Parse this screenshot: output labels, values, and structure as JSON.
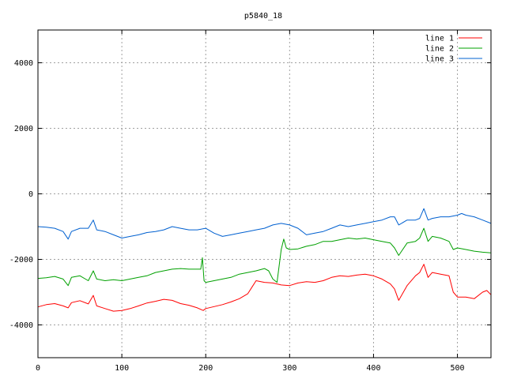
{
  "chart_data": {
    "type": "line",
    "title": "p5840_18",
    "xlabel": "",
    "ylabel": "",
    "xlim": [
      0,
      540
    ],
    "ylim": [
      -5000,
      5000
    ],
    "x_ticks": [
      0,
      100,
      200,
      300,
      400,
      500
    ],
    "y_ticks": [
      -4000,
      -2000,
      0,
      2000,
      4000
    ],
    "grid": true,
    "legend_position": "top-right",
    "series": [
      {
        "name": "line 1",
        "color": "#ff0000",
        "x": [
          0,
          10,
          20,
          30,
          36,
          40,
          50,
          60,
          66,
          70,
          80,
          90,
          100,
          110,
          120,
          130,
          140,
          150,
          160,
          170,
          180,
          190,
          197,
          200,
          210,
          220,
          230,
          240,
          250,
          255,
          260,
          270,
          280,
          290,
          300,
          310,
          320,
          330,
          340,
          350,
          360,
          370,
          380,
          390,
          400,
          410,
          420,
          425,
          430,
          440,
          450,
          455,
          460,
          465,
          470,
          480,
          490,
          495,
          500,
          510,
          520,
          530,
          535,
          540
        ],
        "y": [
          -3450,
          -3380,
          -3350,
          -3420,
          -3480,
          -3320,
          -3260,
          -3360,
          -3100,
          -3420,
          -3500,
          -3580,
          -3560,
          -3500,
          -3420,
          -3330,
          -3280,
          -3220,
          -3250,
          -3350,
          -3400,
          -3480,
          -3560,
          -3500,
          -3440,
          -3380,
          -3300,
          -3200,
          -3050,
          -2850,
          -2650,
          -2700,
          -2720,
          -2780,
          -2800,
          -2720,
          -2680,
          -2700,
          -2650,
          -2550,
          -2500,
          -2520,
          -2480,
          -2450,
          -2500,
          -2600,
          -2750,
          -2900,
          -3250,
          -2800,
          -2500,
          -2400,
          -2150,
          -2550,
          -2400,
          -2450,
          -2500,
          -3000,
          -3150,
          -3150,
          -3200,
          -3000,
          -2950,
          -3080
        ]
      },
      {
        "name": "line 2",
        "color": "#00a000",
        "x": [
          0,
          10,
          20,
          30,
          36,
          40,
          50,
          60,
          66,
          70,
          80,
          90,
          100,
          110,
          120,
          130,
          140,
          150,
          160,
          170,
          180,
          190,
          194,
          196,
          198,
          200,
          210,
          220,
          230,
          240,
          250,
          260,
          270,
          275,
          280,
          285,
          290,
          293,
          296,
          300,
          310,
          320,
          330,
          340,
          350,
          360,
          370,
          380,
          390,
          400,
          410,
          420,
          425,
          430,
          440,
          450,
          455,
          460,
          465,
          470,
          480,
          490,
          495,
          500,
          510,
          520,
          530,
          540
        ],
        "y": [
          -2580,
          -2560,
          -2520,
          -2600,
          -2800,
          -2550,
          -2500,
          -2650,
          -2350,
          -2600,
          -2650,
          -2620,
          -2650,
          -2600,
          -2550,
          -2500,
          -2400,
          -2350,
          -2300,
          -2280,
          -2300,
          -2300,
          -2300,
          -1950,
          -2650,
          -2700,
          -2650,
          -2600,
          -2550,
          -2450,
          -2400,
          -2350,
          -2280,
          -2350,
          -2600,
          -2700,
          -1700,
          -1380,
          -1650,
          -1700,
          -1680,
          -1600,
          -1550,
          -1450,
          -1450,
          -1400,
          -1350,
          -1380,
          -1350,
          -1400,
          -1450,
          -1500,
          -1650,
          -1880,
          -1500,
          -1450,
          -1350,
          -1050,
          -1450,
          -1300,
          -1350,
          -1450,
          -1700,
          -1650,
          -1700,
          -1750,
          -1780,
          -1800
        ]
      },
      {
        "name": "line 3",
        "color": "#0060d0",
        "x": [
          0,
          10,
          20,
          30,
          36,
          40,
          50,
          60,
          66,
          70,
          80,
          90,
          100,
          110,
          120,
          130,
          140,
          150,
          160,
          170,
          180,
          190,
          200,
          210,
          220,
          230,
          240,
          250,
          260,
          270,
          280,
          290,
          300,
          310,
          320,
          330,
          340,
          350,
          360,
          370,
          380,
          390,
          400,
          410,
          420,
          425,
          430,
          440,
          450,
          455,
          460,
          465,
          470,
          480,
          490,
          500,
          505,
          510,
          520,
          530,
          540
        ],
        "y": [
          -1000,
          -1020,
          -1050,
          -1150,
          -1380,
          -1150,
          -1050,
          -1050,
          -800,
          -1100,
          -1150,
          -1250,
          -1350,
          -1300,
          -1250,
          -1180,
          -1150,
          -1100,
          -1000,
          -1050,
          -1100,
          -1100,
          -1050,
          -1200,
          -1300,
          -1250,
          -1200,
          -1150,
          -1100,
          -1050,
          -950,
          -900,
          -950,
          -1050,
          -1250,
          -1200,
          -1150,
          -1050,
          -950,
          -1000,
          -950,
          -900,
          -850,
          -800,
          -700,
          -700,
          -950,
          -800,
          -800,
          -750,
          -450,
          -800,
          -750,
          -700,
          -700,
          -650,
          -600,
          -650,
          -700,
          -800,
          -900
        ]
      }
    ]
  }
}
